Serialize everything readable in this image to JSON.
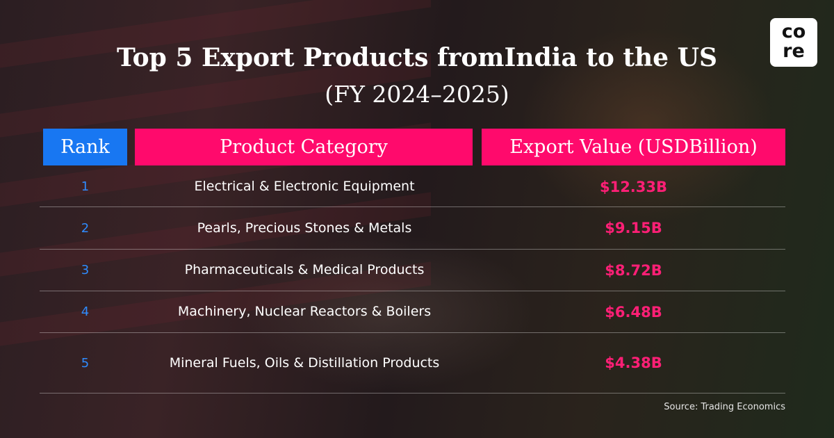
{
  "header": {
    "title": "Top 5 Export Products fromIndia to the US",
    "subtitle": "(FY 2024–2025)",
    "logo": [
      "co",
      "re"
    ]
  },
  "table": {
    "columns": [
      "Rank",
      "Product Category",
      "Export Value (USDBillion)"
    ],
    "rows": [
      [
        "1",
        "Electrical & Electronic Equipment",
        "$12.33B"
      ],
      [
        "2",
        "Pearls, Precious Stones & Metals",
        "$9.15B"
      ],
      [
        "3",
        "Pharmaceuticals & Medical Products",
        "$8.72B"
      ],
      [
        "4",
        "Machinery, Nuclear Reactors & Boilers",
        "$6.48B"
      ],
      [
        "5",
        "Mineral Fuels, Oils & Distillation Products",
        "$4.38B"
      ]
    ]
  },
  "footer": {
    "source": "Source: Trading Economics"
  }
}
